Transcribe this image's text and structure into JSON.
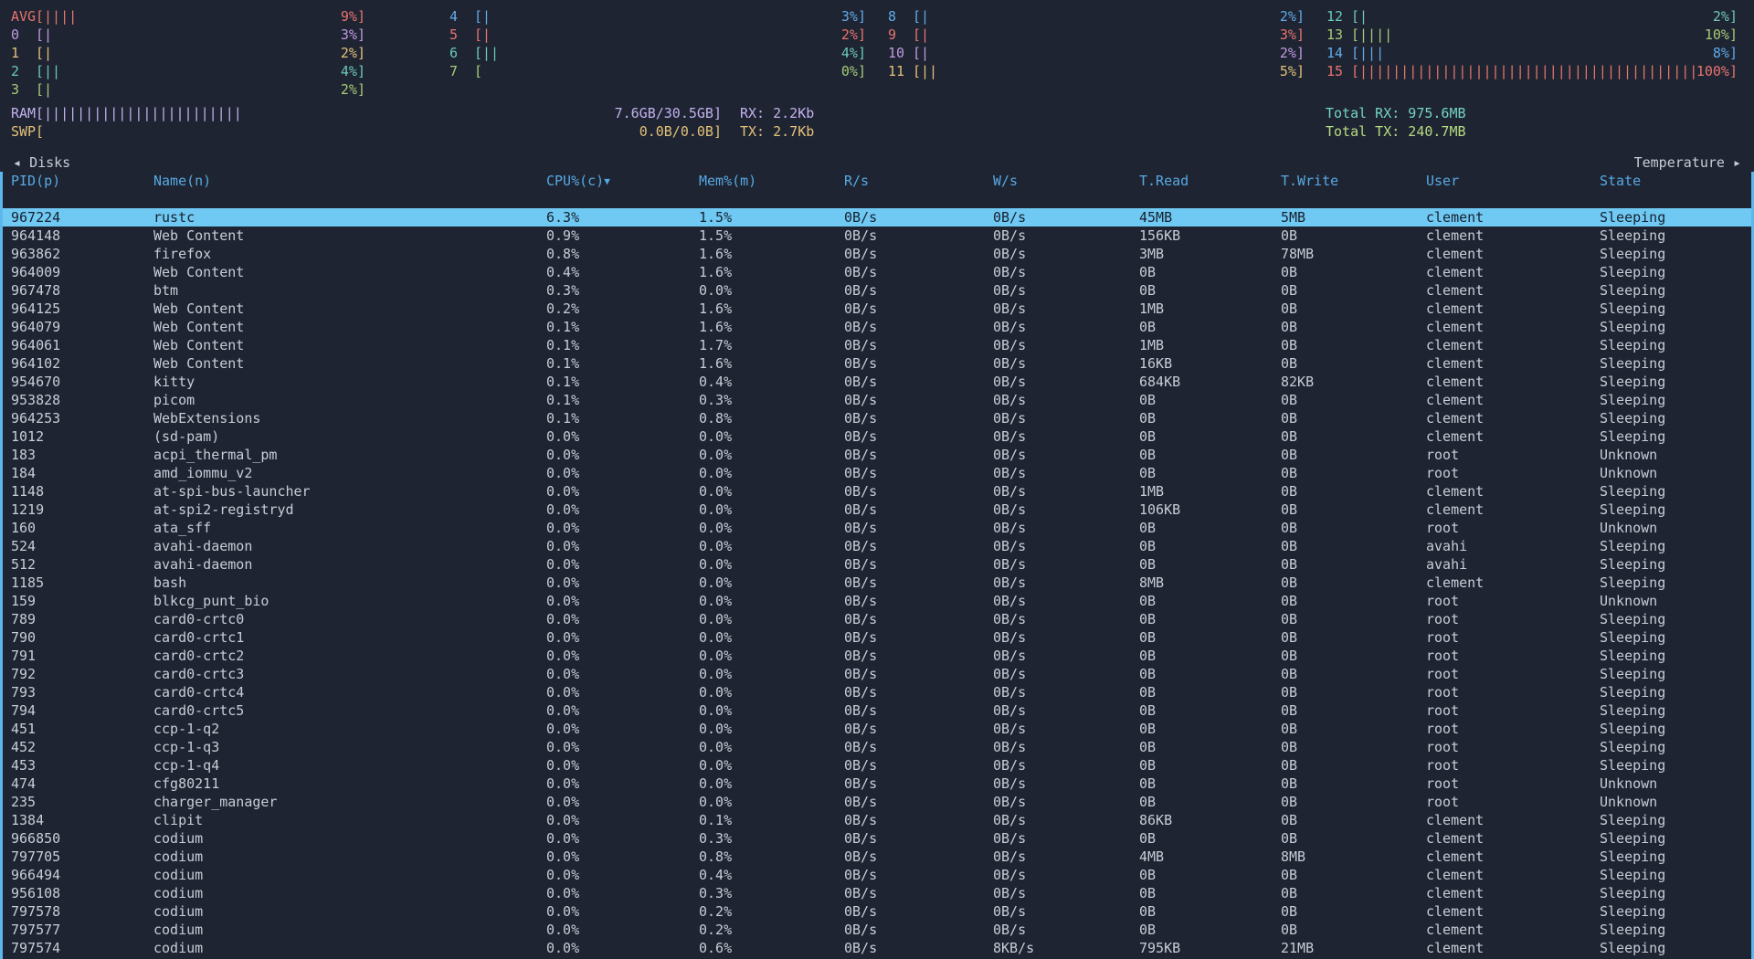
{
  "colors": {
    "bg": "#1e2432",
    "fg": "#c8cdd6",
    "header_blue": "#57a9e2",
    "panel_border": "#5cb8ec",
    "selected_bg": "#6fc9f2",
    "selected_fg": "#17202e",
    "red": "#e8746e",
    "magenta": "#c09ae0",
    "yellow": "#e3c179",
    "cyan": "#6cc9b8",
    "green": "#a6cb77",
    "blue": "#62abe8",
    "ram_purple": "#c3b1ee",
    "total_rx": "#74d4c0",
    "total_tx": "#b6dc80"
  },
  "cpu": {
    "columns": [
      [
        0,
        1,
        2,
        3,
        4
      ],
      [
        5,
        6,
        7,
        8
      ],
      [
        9,
        10,
        11,
        12
      ],
      [
        13,
        14,
        15,
        16
      ]
    ],
    "gauges": [
      {
        "label": "AVG",
        "value": "9%",
        "ticks": 4,
        "color": "red"
      },
      {
        "label": "0",
        "value": "3%",
        "ticks": 1,
        "color": "magenta"
      },
      {
        "label": "1",
        "value": "2%",
        "ticks": 1,
        "color": "yellow"
      },
      {
        "label": "2",
        "value": "4%",
        "ticks": 2,
        "color": "cyan"
      },
      {
        "label": "3",
        "value": "2%",
        "ticks": 1,
        "color": "green"
      },
      {
        "label": "4",
        "value": "3%",
        "ticks": 1,
        "color": "blue"
      },
      {
        "label": "5",
        "value": "2%",
        "ticks": 1,
        "color": "red"
      },
      {
        "label": "6",
        "value": "4%",
        "ticks": 2,
        "color": "cyan"
      },
      {
        "label": "7",
        "value": "0%",
        "ticks": 0,
        "color": "green"
      },
      {
        "label": "8",
        "value": "2%",
        "ticks": 1,
        "color": "blue"
      },
      {
        "label": "9",
        "value": "3%",
        "ticks": 1,
        "color": "red"
      },
      {
        "label": "10",
        "value": "2%",
        "ticks": 1,
        "color": "magenta"
      },
      {
        "label": "11",
        "value": "5%",
        "ticks": 2,
        "color": "yellow"
      },
      {
        "label": "12",
        "value": "2%",
        "ticks": 1,
        "color": "cyan"
      },
      {
        "label": "13",
        "value": "10%",
        "ticks": 4,
        "color": "green"
      },
      {
        "label": "14",
        "value": "8%",
        "ticks": 3,
        "color": "blue"
      },
      {
        "label": "15",
        "value": "100%",
        "ticks": 60,
        "color": "red"
      }
    ]
  },
  "memory": {
    "rows": [
      {
        "label": "RAM",
        "ticks": 24,
        "value": "7.6GB/30.5GB",
        "color": "ram_purple",
        "net_label": "RX: 2.2Kb",
        "net_color": "ram_purple",
        "total_label": "Total RX: 975.6MB",
        "total_color": "total_rx"
      },
      {
        "label": "SWP",
        "ticks": 0,
        "value": "0.0B/0.0B",
        "color": "yellow",
        "net_label": "TX: 2.7Kb",
        "net_color": "yellow",
        "total_label": "Total TX: 240.7MB",
        "total_color": "total_tx"
      }
    ]
  },
  "nav": {
    "left_arrow": "◂",
    "left_label": "Disks",
    "right_label": "Temperature",
    "right_arrow": "▸"
  },
  "process_table": {
    "headers": [
      {
        "key": "pid",
        "label": "PID(p)"
      },
      {
        "key": "name",
        "label": "Name(n)"
      },
      {
        "key": "cpu",
        "label": "CPU%(c)",
        "sort": "▼"
      },
      {
        "key": "mem",
        "label": "Mem%(m)"
      },
      {
        "key": "read-per-sec",
        "label": "R/s"
      },
      {
        "key": "write-per-sec",
        "label": "W/s"
      },
      {
        "key": "total-read",
        "label": "T.Read"
      },
      {
        "key": "total-write",
        "label": "T.Write"
      },
      {
        "key": "user",
        "label": "User"
      },
      {
        "key": "state",
        "label": "State"
      }
    ],
    "selected_index": 0,
    "rows": [
      [
        "967224",
        "rustc",
        "6.3%",
        "1.5%",
        "0B/s",
        "0B/s",
        "45MB",
        "5MB",
        "clement",
        "Sleeping"
      ],
      [
        "964148",
        "Web Content",
        "0.9%",
        "1.5%",
        "0B/s",
        "0B/s",
        "156KB",
        "0B",
        "clement",
        "Sleeping"
      ],
      [
        "963862",
        "firefox",
        "0.8%",
        "1.6%",
        "0B/s",
        "0B/s",
        "3MB",
        "78MB",
        "clement",
        "Sleeping"
      ],
      [
        "964009",
        "Web Content",
        "0.4%",
        "1.6%",
        "0B/s",
        "0B/s",
        "0B",
        "0B",
        "clement",
        "Sleeping"
      ],
      [
        "967478",
        "btm",
        "0.3%",
        "0.0%",
        "0B/s",
        "0B/s",
        "0B",
        "0B",
        "clement",
        "Sleeping"
      ],
      [
        "964125",
        "Web Content",
        "0.2%",
        "1.6%",
        "0B/s",
        "0B/s",
        "1MB",
        "0B",
        "clement",
        "Sleeping"
      ],
      [
        "964079",
        "Web Content",
        "0.1%",
        "1.6%",
        "0B/s",
        "0B/s",
        "0B",
        "0B",
        "clement",
        "Sleeping"
      ],
      [
        "964061",
        "Web Content",
        "0.1%",
        "1.7%",
        "0B/s",
        "0B/s",
        "1MB",
        "0B",
        "clement",
        "Sleeping"
      ],
      [
        "964102",
        "Web Content",
        "0.1%",
        "1.6%",
        "0B/s",
        "0B/s",
        "16KB",
        "0B",
        "clement",
        "Sleeping"
      ],
      [
        "954670",
        "kitty",
        "0.1%",
        "0.4%",
        "0B/s",
        "0B/s",
        "684KB",
        "82KB",
        "clement",
        "Sleeping"
      ],
      [
        "953828",
        "picom",
        "0.1%",
        "0.3%",
        "0B/s",
        "0B/s",
        "0B",
        "0B",
        "clement",
        "Sleeping"
      ],
      [
        "964253",
        "WebExtensions",
        "0.1%",
        "0.8%",
        "0B/s",
        "0B/s",
        "0B",
        "0B",
        "clement",
        "Sleeping"
      ],
      [
        "1012",
        "(sd-pam)",
        "0.0%",
        "0.0%",
        "0B/s",
        "0B/s",
        "0B",
        "0B",
        "clement",
        "Sleeping"
      ],
      [
        "183",
        "acpi_thermal_pm",
        "0.0%",
        "0.0%",
        "0B/s",
        "0B/s",
        "0B",
        "0B",
        "root",
        "Unknown"
      ],
      [
        "184",
        "amd_iommu_v2",
        "0.0%",
        "0.0%",
        "0B/s",
        "0B/s",
        "0B",
        "0B",
        "root",
        "Unknown"
      ],
      [
        "1148",
        "at-spi-bus-launcher",
        "0.0%",
        "0.0%",
        "0B/s",
        "0B/s",
        "1MB",
        "0B",
        "clement",
        "Sleeping"
      ],
      [
        "1219",
        "at-spi2-registryd",
        "0.0%",
        "0.0%",
        "0B/s",
        "0B/s",
        "106KB",
        "0B",
        "clement",
        "Sleeping"
      ],
      [
        "160",
        "ata_sff",
        "0.0%",
        "0.0%",
        "0B/s",
        "0B/s",
        "0B",
        "0B",
        "root",
        "Unknown"
      ],
      [
        "524",
        "avahi-daemon",
        "0.0%",
        "0.0%",
        "0B/s",
        "0B/s",
        "0B",
        "0B",
        "avahi",
        "Sleeping"
      ],
      [
        "512",
        "avahi-daemon",
        "0.0%",
        "0.0%",
        "0B/s",
        "0B/s",
        "0B",
        "0B",
        "avahi",
        "Sleeping"
      ],
      [
        "1185",
        "bash",
        "0.0%",
        "0.0%",
        "0B/s",
        "0B/s",
        "8MB",
        "0B",
        "clement",
        "Sleeping"
      ],
      [
        "159",
        "blkcg_punt_bio",
        "0.0%",
        "0.0%",
        "0B/s",
        "0B/s",
        "0B",
        "0B",
        "root",
        "Unknown"
      ],
      [
        "789",
        "card0-crtc0",
        "0.0%",
        "0.0%",
        "0B/s",
        "0B/s",
        "0B",
        "0B",
        "root",
        "Sleeping"
      ],
      [
        "790",
        "card0-crtc1",
        "0.0%",
        "0.0%",
        "0B/s",
        "0B/s",
        "0B",
        "0B",
        "root",
        "Sleeping"
      ],
      [
        "791",
        "card0-crtc2",
        "0.0%",
        "0.0%",
        "0B/s",
        "0B/s",
        "0B",
        "0B",
        "root",
        "Sleeping"
      ],
      [
        "792",
        "card0-crtc3",
        "0.0%",
        "0.0%",
        "0B/s",
        "0B/s",
        "0B",
        "0B",
        "root",
        "Sleeping"
      ],
      [
        "793",
        "card0-crtc4",
        "0.0%",
        "0.0%",
        "0B/s",
        "0B/s",
        "0B",
        "0B",
        "root",
        "Sleeping"
      ],
      [
        "794",
        "card0-crtc5",
        "0.0%",
        "0.0%",
        "0B/s",
        "0B/s",
        "0B",
        "0B",
        "root",
        "Sleeping"
      ],
      [
        "451",
        "ccp-1-q2",
        "0.0%",
        "0.0%",
        "0B/s",
        "0B/s",
        "0B",
        "0B",
        "root",
        "Sleeping"
      ],
      [
        "452",
        "ccp-1-q3",
        "0.0%",
        "0.0%",
        "0B/s",
        "0B/s",
        "0B",
        "0B",
        "root",
        "Sleeping"
      ],
      [
        "453",
        "ccp-1-q4",
        "0.0%",
        "0.0%",
        "0B/s",
        "0B/s",
        "0B",
        "0B",
        "root",
        "Sleeping"
      ],
      [
        "474",
        "cfg80211",
        "0.0%",
        "0.0%",
        "0B/s",
        "0B/s",
        "0B",
        "0B",
        "root",
        "Unknown"
      ],
      [
        "235",
        "charger_manager",
        "0.0%",
        "0.0%",
        "0B/s",
        "0B/s",
        "0B",
        "0B",
        "root",
        "Unknown"
      ],
      [
        "1384",
        "clipit",
        "0.0%",
        "0.1%",
        "0B/s",
        "0B/s",
        "86KB",
        "0B",
        "clement",
        "Sleeping"
      ],
      [
        "966850",
        "codium",
        "0.0%",
        "0.3%",
        "0B/s",
        "0B/s",
        "0B",
        "0B",
        "clement",
        "Sleeping"
      ],
      [
        "797705",
        "codium",
        "0.0%",
        "0.8%",
        "0B/s",
        "0B/s",
        "4MB",
        "8MB",
        "clement",
        "Sleeping"
      ],
      [
        "966494",
        "codium",
        "0.0%",
        "0.4%",
        "0B/s",
        "0B/s",
        "0B",
        "0B",
        "clement",
        "Sleeping"
      ],
      [
        "956108",
        "codium",
        "0.0%",
        "0.3%",
        "0B/s",
        "0B/s",
        "0B",
        "0B",
        "clement",
        "Sleeping"
      ],
      [
        "797578",
        "codium",
        "0.0%",
        "0.2%",
        "0B/s",
        "0B/s",
        "0B",
        "0B",
        "clement",
        "Sleeping"
      ],
      [
        "797577",
        "codium",
        "0.0%",
        "0.2%",
        "0B/s",
        "0B/s",
        "0B",
        "0B",
        "clement",
        "Sleeping"
      ],
      [
        "797574",
        "codium",
        "0.0%",
        "0.6%",
        "0B/s",
        "8KB/s",
        "795KB",
        "21MB",
        "clement",
        "Sleeping"
      ]
    ]
  }
}
